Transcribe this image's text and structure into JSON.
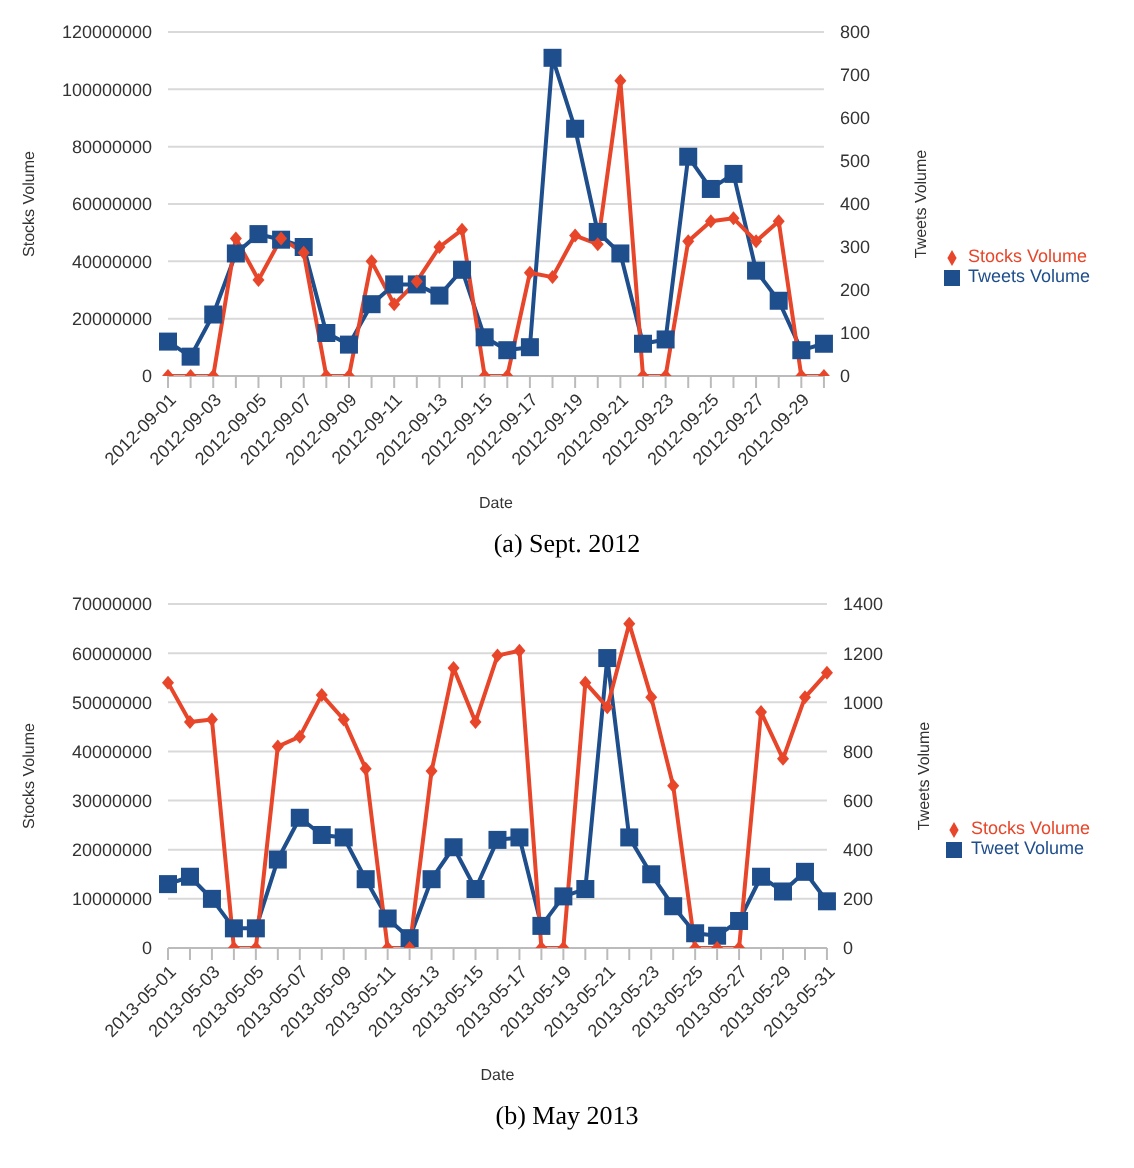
{
  "chart_data": [
    {
      "type": "line",
      "title": "(a) Sept. 2012",
      "xlabel": "Date",
      "ylabel": "Stocks Volume",
      "y2label": "Tweets Volume",
      "categories": [
        "2012-09-01",
        null,
        "2012-09-03",
        null,
        "2012-09-05",
        null,
        "2012-09-07",
        null,
        "2012-09-09",
        null,
        "2012-09-11",
        null,
        "2012-09-13",
        null,
        "2012-09-15",
        null,
        "2012-09-17",
        null,
        "2012-09-19",
        null,
        "2012-09-21",
        null,
        "2012-09-23",
        null,
        "2012-09-25",
        null,
        "2012-09-27",
        null,
        "2012-09-29",
        null
      ],
      "series": [
        {
          "name": "Tweets Volume",
          "color": "#1f4e8c",
          "axis": "y2",
          "marker": "square",
          "values": [
            80,
            45,
            143,
            285,
            330,
            317,
            300,
            100,
            73,
            167,
            213,
            213,
            187,
            247,
            90,
            60,
            67,
            740,
            575,
            335,
            285,
            75,
            85,
            510,
            435,
            470,
            245,
            175,
            60,
            75
          ]
        },
        {
          "name": "Stocks Volume",
          "color": "#e8462a",
          "axis": "y",
          "marker": "diamond",
          "values": [
            0,
            0,
            0,
            48000000,
            33500000,
            48000000,
            43000000,
            0,
            0,
            40000000,
            25000000,
            33000000,
            45000000,
            51000000,
            0,
            0,
            36000000,
            34500000,
            49000000,
            46000000,
            103000000,
            0,
            0,
            47000000,
            54000000,
            55000000,
            47000000,
            54000000,
            0,
            0
          ]
        }
      ],
      "ylim": [
        0,
        120000000
      ],
      "yticks": [
        0,
        20000000,
        40000000,
        60000000,
        80000000,
        100000000,
        120000000
      ],
      "y2lim": [
        0,
        800
      ],
      "y2ticks": [
        0,
        100,
        200,
        300,
        400,
        500,
        600,
        700,
        800
      ],
      "grid": "y",
      "legend": "right",
      "line_style": "solid"
    },
    {
      "type": "line",
      "title": "(b) May 2013",
      "xlabel": "Date",
      "ylabel": "Stocks Volume",
      "y2label": "Tweets Volume",
      "categories": [
        "2013-05-01",
        null,
        "2013-05-03",
        null,
        "2013-05-05",
        null,
        "2013-05-07",
        null,
        "2013-05-09",
        null,
        "2013-05-11",
        null,
        "2013-05-13",
        null,
        "2013-05-15",
        null,
        "2013-05-17",
        null,
        "2013-05-19",
        null,
        "2013-05-21",
        null,
        "2013-05-23",
        null,
        "2013-05-25",
        null,
        "2013-05-27",
        null,
        "2013-05-29",
        null,
        "2013-05-31"
      ],
      "series": [
        {
          "name": "Tweet Volume",
          "color": "#1f4e8c",
          "axis": "y2",
          "marker": "square",
          "values": [
            260,
            290,
            200,
            80,
            80,
            360,
            530,
            460,
            450,
            280,
            120,
            40,
            280,
            410,
            240,
            440,
            450,
            90,
            210,
            240,
            1180,
            450,
            300,
            170,
            60,
            50,
            110,
            290,
            230,
            310,
            190
          ]
        },
        {
          "name": "Stocks Volume",
          "color": "#e8462a",
          "axis": "y",
          "marker": "diamond",
          "values": [
            54000000,
            46000000,
            46500000,
            0,
            0,
            41000000,
            43000000,
            51500000,
            46500000,
            36500000,
            0,
            0,
            36000000,
            57000000,
            46000000,
            59500000,
            60500000,
            0,
            0,
            54000000,
            49000000,
            66000000,
            51000000,
            33000000,
            0,
            0,
            0,
            48000000,
            38500000,
            51000000,
            56000000
          ]
        }
      ],
      "ylim": [
        0,
        70000000
      ],
      "yticks": [
        0,
        10000000,
        20000000,
        30000000,
        40000000,
        50000000,
        60000000,
        70000000
      ],
      "y2lim": [
        0,
        1400
      ],
      "y2ticks": [
        0,
        200,
        400,
        600,
        800,
        1000,
        1200,
        1400
      ],
      "grid": "y",
      "legend": "right",
      "line_style": "solid"
    }
  ]
}
